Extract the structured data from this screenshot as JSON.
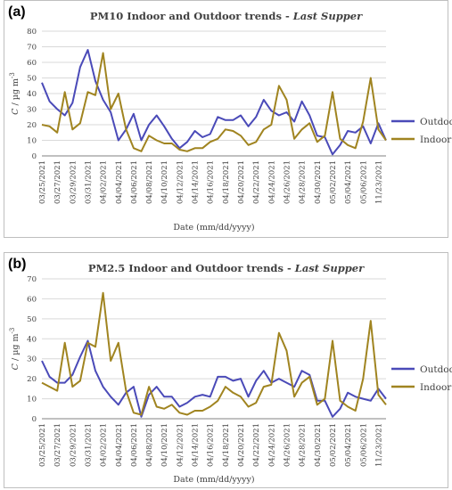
{
  "colors": {
    "outdoor": "#4a4ab8",
    "indoor": "#a08420",
    "grid": "#d9d9d9",
    "axis": "#808080"
  },
  "chart_data": [
    {
      "panel_label": "(a)",
      "type": "line",
      "title_main": "PM10 Indoor and Outdoor trends - ",
      "title_italic": "Last Supper",
      "xlabel": "Date (mm/dd/yyyy)",
      "ylabel": "C / µg m",
      "ylabel_sup": "-3",
      "ylim": [
        0,
        80
      ],
      "yticks": [
        0,
        10,
        20,
        30,
        40,
        50,
        60,
        70,
        80
      ],
      "grid": true,
      "legend": "right",
      "x_tick_labels": [
        "03/25/2021",
        "03/27/2021",
        "03/29/2021",
        "03/31/2021",
        "04/02/2021",
        "04/04/2021",
        "04/06/2021",
        "04/08/2021",
        "04/10/2021",
        "04/12/2021",
        "04/14/2021",
        "04/16/2021",
        "04/18/2021",
        "04/20/2021",
        "04/22/2021",
        "04/24/2021",
        "04/26/2021",
        "04/28/2021",
        "04/30/2021",
        "05/02/2021",
        "05/04/2021",
        "05/06/2021",
        "11/23/2021"
      ],
      "series": [
        {
          "name": "Outdoor",
          "values": [
            47,
            35,
            30,
            26,
            34,
            57,
            68,
            48,
            36,
            28,
            10,
            17,
            27,
            10,
            20,
            26,
            19,
            11,
            5,
            9,
            16,
            12,
            14,
            25,
            23,
            23,
            26,
            19,
            25,
            36,
            29,
            26,
            28,
            22,
            35,
            26,
            13,
            12,
            1,
            7,
            16,
            15,
            19,
            8,
            21,
            10
          ]
        },
        {
          "name": "Indoor",
          "values": [
            20,
            19,
            15,
            41,
            17,
            21,
            41,
            39,
            66,
            30,
            40,
            17,
            5,
            3,
            13,
            10,
            8,
            8,
            4,
            3,
            5,
            5,
            9,
            11,
            17,
            16,
            13,
            7,
            9,
            17,
            20,
            45,
            36,
            11,
            17,
            21,
            9,
            13,
            41,
            11,
            7,
            5,
            22,
            50,
            17,
            10
          ]
        }
      ]
    },
    {
      "panel_label": "(b)",
      "type": "line",
      "title_main": "PM2.5 Indoor and Outdoor trends - ",
      "title_italic": "Last Supper",
      "xlabel": "Date (mm/dd/yyyy)",
      "ylabel": "C / µg m",
      "ylabel_sup": "-3",
      "ylim": [
        0,
        70
      ],
      "yticks": [
        0,
        10,
        20,
        30,
        40,
        50,
        60,
        70
      ],
      "grid": true,
      "legend": "right",
      "x_tick_labels": [
        "03/25/2021",
        "03/27/2021",
        "03/29/2021",
        "03/31/2021",
        "04/02/2021",
        "04/04/2021",
        "04/06/2021",
        "04/08/2021",
        "04/10/2021",
        "04/12/2021",
        "04/14/2021",
        "04/16/2021",
        "04/18/2021",
        "04/20/2021",
        "04/22/2021",
        "04/24/2021",
        "04/26/2021",
        "04/28/2021",
        "04/30/2021",
        "05/02/2021",
        "05/04/2021",
        "05/06/2021",
        "11/23/2021"
      ],
      "series": [
        {
          "name": "Outdoor",
          "values": [
            29,
            21,
            18,
            18,
            22,
            31,
            39,
            24,
            16,
            11,
            7,
            13,
            16,
            1,
            12,
            16,
            11,
            11,
            6,
            8,
            11,
            12,
            11,
            21,
            21,
            19,
            20,
            11,
            19,
            24,
            18,
            20,
            18,
            16,
            24,
            22,
            9,
            9,
            1,
            5,
            13,
            11,
            10,
            9,
            15,
            10
          ]
        },
        {
          "name": "Indoor",
          "values": [
            18,
            16,
            14,
            38,
            16,
            19,
            38,
            36,
            63,
            29,
            38,
            14,
            3,
            2,
            16,
            6,
            5,
            7,
            3,
            2,
            4,
            4,
            6,
            9,
            16,
            13,
            11,
            6,
            8,
            16,
            17,
            43,
            34,
            11,
            18,
            21,
            7,
            10,
            39,
            9,
            6,
            4,
            20,
            49,
            12,
            7
          ]
        }
      ]
    }
  ]
}
